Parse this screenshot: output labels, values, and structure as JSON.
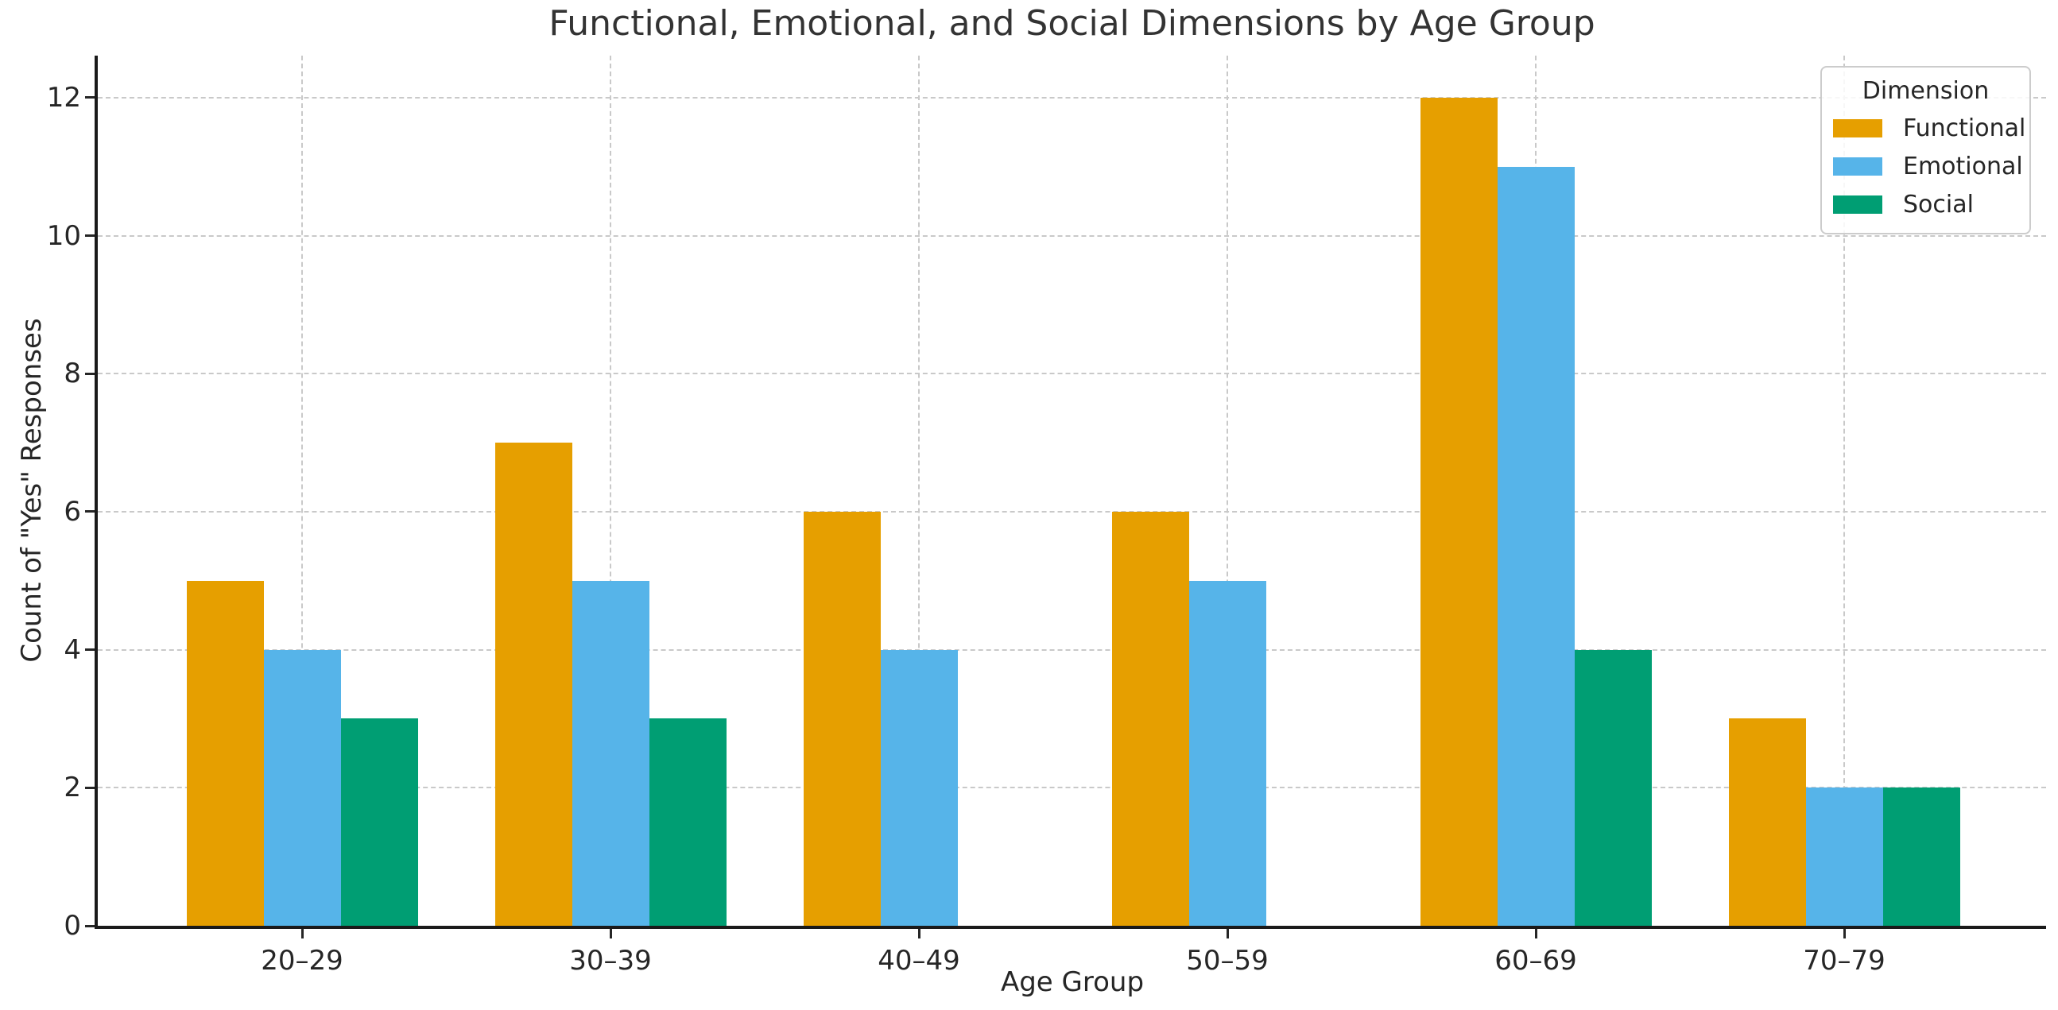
{
  "chart_data": {
    "type": "bar",
    "title": "Functional, Emotional, and Social Dimensions by Age Group",
    "xlabel": "Age Group",
    "ylabel": "Count of \"Yes\" Responses",
    "categories": [
      "20–29",
      "30–39",
      "40–49",
      "50–59",
      "60–69",
      "70–79"
    ],
    "series": [
      {
        "name": "Functional",
        "color": "#E69F00",
        "values": [
          5,
          7,
          6,
          6,
          12,
          3
        ]
      },
      {
        "name": "Emotional",
        "color": "#56B4E9",
        "values": [
          4,
          5,
          4,
          5,
          11,
          2
        ]
      },
      {
        "name": "Social",
        "color": "#009E73",
        "values": [
          3,
          3,
          0,
          0,
          4,
          2
        ]
      }
    ],
    "legend": {
      "title": "Dimension",
      "position": "upper right"
    },
    "yticks": [
      0,
      2,
      4,
      6,
      8,
      10,
      12
    ],
    "ylim": [
      0,
      12.61
    ],
    "grid": true,
    "colors": {
      "grid": "#c9c9c9",
      "spine": "#1a1a1a",
      "text": "#262626",
      "title": "#333333",
      "background": "#ffffff"
    }
  }
}
